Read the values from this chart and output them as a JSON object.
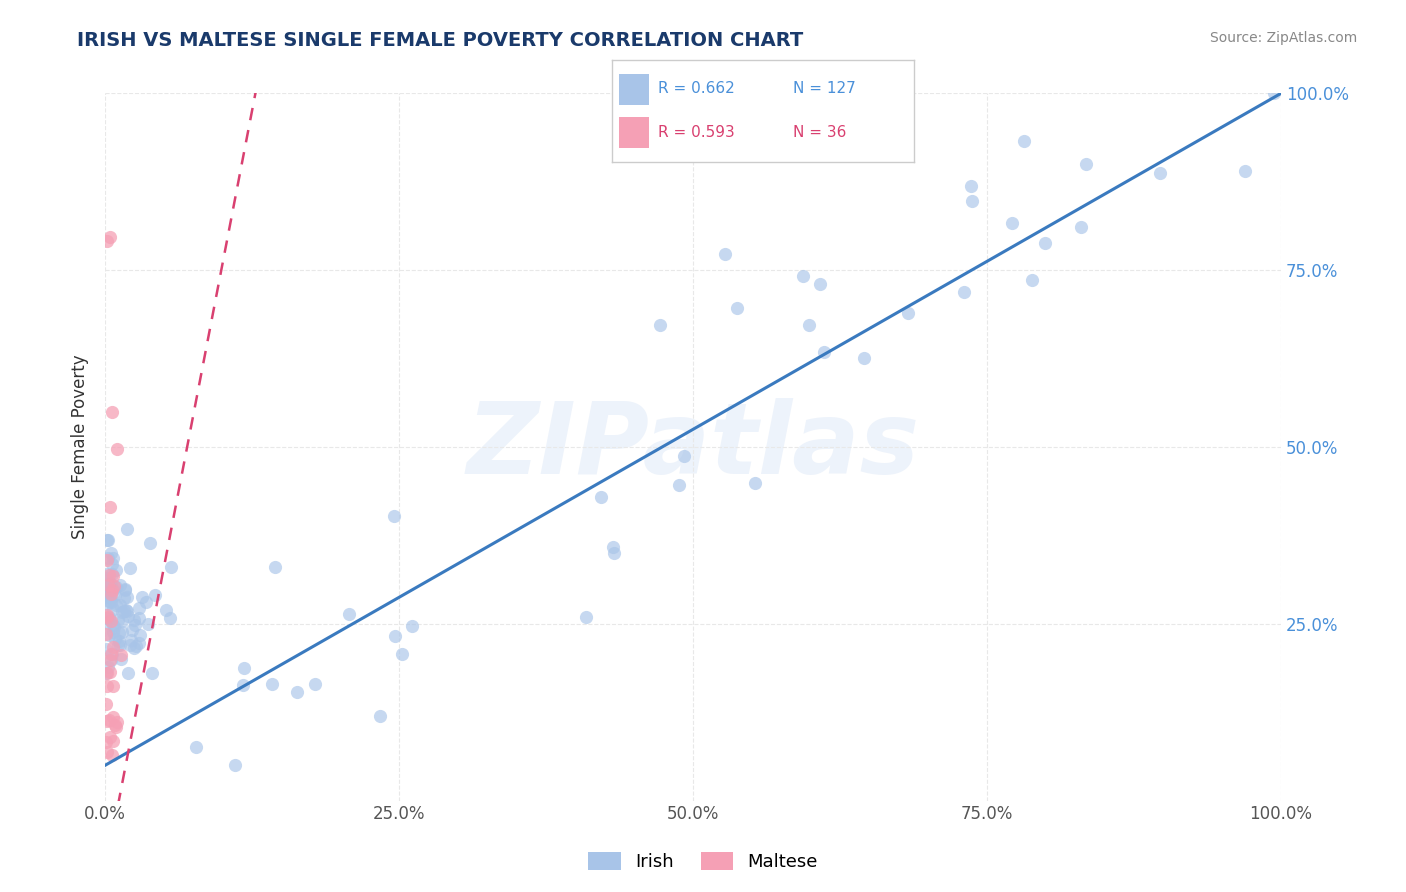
{
  "title": "IRISH VS MALTESE SINGLE FEMALE POVERTY CORRELATION CHART",
  "source": "Source: ZipAtlas.com",
  "ylabel": "Single Female Poverty",
  "watermark": "ZIPatlas",
  "irish_R": 0.662,
  "irish_N": 127,
  "maltese_R": 0.593,
  "maltese_N": 36,
  "irish_color": "#a8c4e8",
  "maltese_color": "#f5a0b5",
  "irish_line_color": "#3a7abf",
  "maltese_line_color": "#d94070",
  "title_color": "#1a3a6b",
  "source_color": "#888888",
  "axis_label_color": "#555555",
  "right_tick_color": "#4a90d9",
  "background_color": "#ffffff",
  "grid_color": "#e8e8e8",
  "xlim": [
    0.0,
    1.0
  ],
  "ylim": [
    0.0,
    1.0
  ]
}
